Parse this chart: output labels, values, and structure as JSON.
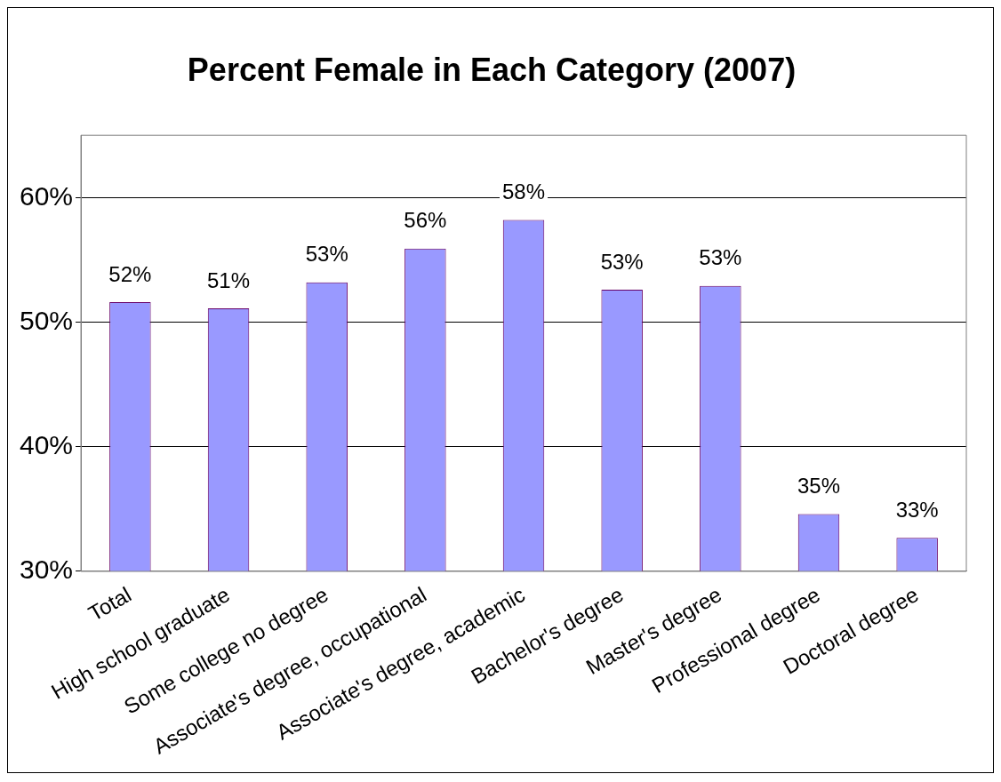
{
  "chart_data": {
    "type": "bar",
    "title": "Percent Female in Each Category (2007)",
    "categories": [
      "Total",
      "High school graduate",
      "Some college no degree",
      "Associate's degree, occupational",
      "Associate's degree, academic",
      "Bachelor's degree",
      "Master's degree",
      "Professional degree",
      "Doctoral degree"
    ],
    "values": [
      51.6,
      51.1,
      53.2,
      55.9,
      58.2,
      52.6,
      52.9,
      34.6,
      32.7
    ],
    "value_labels": [
      "52%",
      "51%",
      "53%",
      "56%",
      "58%",
      "53%",
      "53%",
      "35%",
      "33%"
    ],
    "color": "#9999ff",
    "ylim": [
      30,
      65
    ],
    "yticks": [
      {
        "value": 30,
        "label": "30%"
      },
      {
        "value": 40,
        "label": "40%"
      },
      {
        "value": 50,
        "label": "50%"
      },
      {
        "value": 60,
        "label": "60%"
      }
    ],
    "grid": "y",
    "legend": false
  }
}
